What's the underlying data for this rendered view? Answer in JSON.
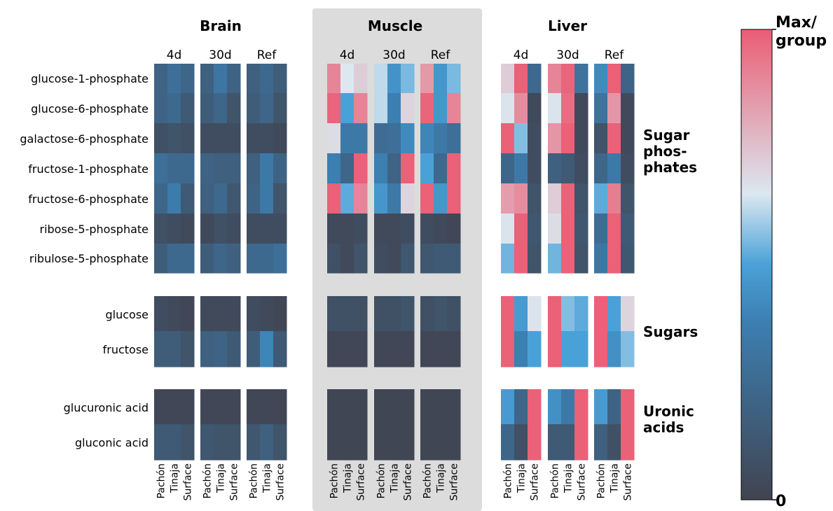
{
  "chart_data": {
    "type": "heatmap",
    "color_scale": {
      "label_max": "Max/\ngroup",
      "label_min": "0",
      "stops": [
        "#414451",
        "#3c7fb1",
        "#dbe8f0",
        "#ea5d74"
      ]
    },
    "panels": [
      {
        "title": "Brain"
      },
      {
        "title": "Muscle",
        "background": "#dcdcdc"
      },
      {
        "title": "Liver"
      }
    ],
    "conditions": [
      "4d",
      "30d",
      "Ref"
    ],
    "populations": [
      "Pachón",
      "Tinaja",
      "Surface"
    ],
    "groups": [
      {
        "label": "Sugar\nphos-\nphates",
        "metabolites": [
          "glucose-1-phosphate",
          "glucose-6-phosphate",
          "galactose-6-phosphate",
          "fructose-1-phosphate",
          "fructose-6-phosphate",
          "ribose-5-phosphate",
          "ribulose-5-phosphate"
        ]
      },
      {
        "label": "Sugars",
        "metabolites": [
          "glucose",
          "fructose"
        ]
      },
      {
        "label": "Uronic\nacids",
        "metabolites": [
          "glucuronic acid",
          "gluconic acid"
        ]
      }
    ],
    "values": {
      "Brain": [
        [
          0.2,
          0.28,
          0.22,
          0.18,
          0.32,
          0.2,
          0.18,
          0.24,
          0.16
        ],
        [
          0.2,
          0.24,
          0.14,
          0.16,
          0.22,
          0.1,
          0.16,
          0.22,
          0.1
        ],
        [
          0.08,
          0.1,
          0.08,
          0.06,
          0.06,
          0.06,
          0.06,
          0.06,
          0.04
        ],
        [
          0.28,
          0.24,
          0.24,
          0.2,
          0.18,
          0.18,
          0.18,
          0.34,
          0.2
        ],
        [
          0.22,
          0.36,
          0.14,
          0.18,
          0.24,
          0.12,
          0.2,
          0.34,
          0.1
        ],
        [
          0.08,
          0.06,
          0.04,
          0.04,
          0.08,
          0.06,
          0.06,
          0.06,
          0.06
        ],
        [
          0.16,
          0.24,
          0.24,
          0.16,
          0.22,
          0.18,
          0.24,
          0.24,
          0.28
        ],
        [
          0.06,
          0.04,
          0.02,
          0.04,
          0.04,
          0.04,
          0.06,
          0.04,
          0.02
        ],
        [
          0.16,
          0.16,
          0.1,
          0.18,
          0.2,
          0.14,
          0.16,
          0.4,
          0.14
        ],
        [
          0.02,
          0.02,
          0.02,
          0.02,
          0.02,
          0.02,
          0.02,
          0.02,
          0.02
        ],
        [
          0.14,
          0.14,
          0.1,
          0.12,
          0.1,
          0.1,
          0.12,
          0.18,
          0.1
        ]
      ],
      "Muscle": [
        [
          0.9,
          0.65,
          0.72,
          0.62,
          0.45,
          0.55,
          0.85,
          0.46,
          0.55
        ],
        [
          0.98,
          0.5,
          0.9,
          0.62,
          0.38,
          0.7,
          0.98,
          0.46,
          0.9
        ],
        [
          0.68,
          0.34,
          0.34,
          0.26,
          0.28,
          0.42,
          0.4,
          0.34,
          0.28
        ],
        [
          0.38,
          0.22,
          0.99,
          0.38,
          0.2,
          0.99,
          0.5,
          0.24,
          0.99
        ],
        [
          0.99,
          0.52,
          0.9,
          0.46,
          0.34,
          0.7,
          0.99,
          0.46,
          0.99
        ],
        [
          0.04,
          0.04,
          0.06,
          0.04,
          0.04,
          0.06,
          0.06,
          0.04,
          0.02
        ],
        [
          0.08,
          0.04,
          0.1,
          0.06,
          0.04,
          0.12,
          0.12,
          0.14,
          0.14
        ],
        [
          0.08,
          0.08,
          0.08,
          0.08,
          0.08,
          0.1,
          0.08,
          0.1,
          0.08
        ],
        [
          0.02,
          0.02,
          0.02,
          0.02,
          0.02,
          0.02,
          0.02,
          0.02,
          0.02
        ],
        [
          0.01,
          0.01,
          0.01,
          0.01,
          0.01,
          0.01,
          0.01,
          0.01,
          0.01
        ],
        [
          0.01,
          0.01,
          0.01,
          0.01,
          0.01,
          0.01,
          0.01,
          0.01,
          0.01
        ]
      ],
      "Liver": [
        [
          0.72,
          0.99,
          0.24,
          0.9,
          0.98,
          0.3,
          0.42,
          0.99,
          0.2
        ],
        [
          0.66,
          0.88,
          0.04,
          0.66,
          0.96,
          0.04,
          0.3,
          0.86,
          0.04
        ],
        [
          0.99,
          0.56,
          0.06,
          0.86,
          0.99,
          0.04,
          0.1,
          0.99,
          0.04
        ],
        [
          0.22,
          0.34,
          0.06,
          0.18,
          0.14,
          0.06,
          0.22,
          0.34,
          0.06
        ],
        [
          0.84,
          0.88,
          0.1,
          0.72,
          0.99,
          0.1,
          0.52,
          0.92,
          0.1
        ],
        [
          0.66,
          0.99,
          0.12,
          0.68,
          0.99,
          0.12,
          0.26,
          0.99,
          0.14
        ],
        [
          0.54,
          0.99,
          0.1,
          0.54,
          0.99,
          0.1,
          0.32,
          0.99,
          0.12
        ],
        [
          0.99,
          0.48,
          0.66,
          0.99,
          0.56,
          0.52,
          0.99,
          0.5,
          0.7
        ],
        [
          0.99,
          0.38,
          0.5,
          0.99,
          0.5,
          0.5,
          0.99,
          0.44,
          0.56
        ],
        [
          0.48,
          0.22,
          0.99,
          0.44,
          0.34,
          0.99,
          0.48,
          0.2,
          0.99
        ],
        [
          0.22,
          0.08,
          0.99,
          0.14,
          0.14,
          0.99,
          0.18,
          0.08,
          0.99
        ]
      ]
    }
  }
}
